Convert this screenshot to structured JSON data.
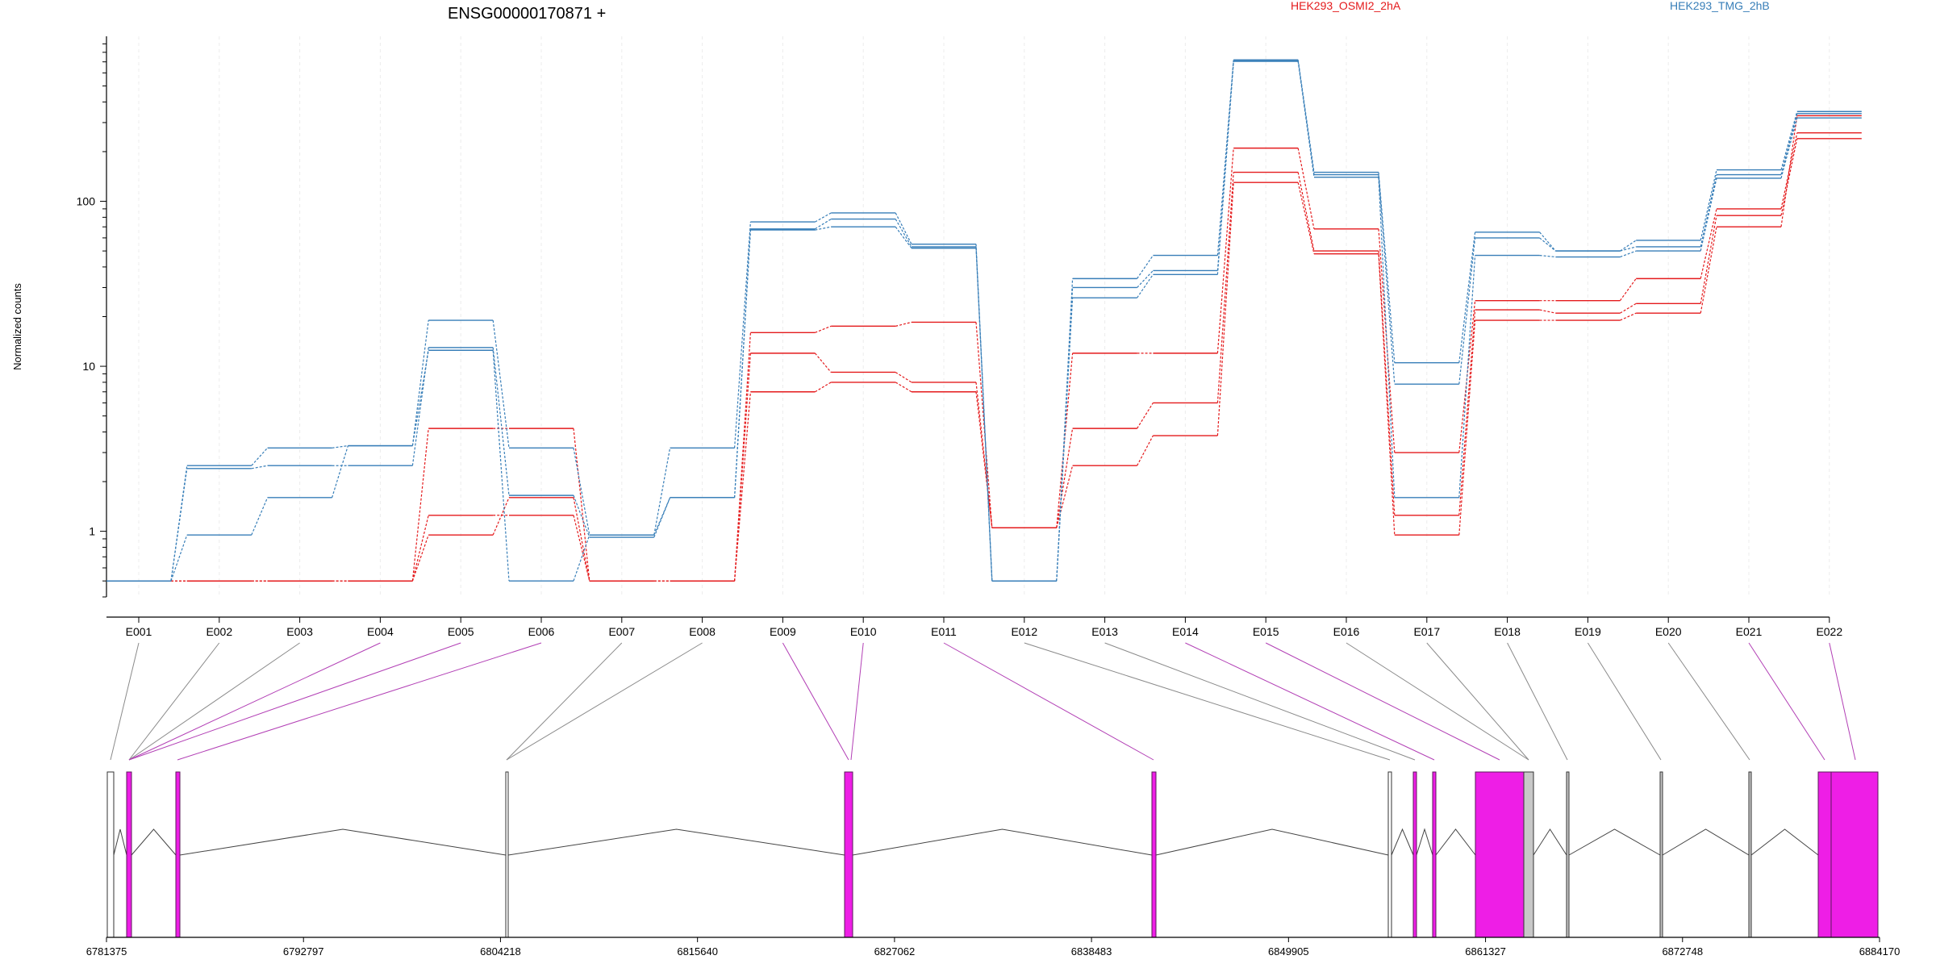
{
  "chart_data": {
    "type": "line",
    "title": "ENSG00000170871 +",
    "ylabel": "Normalized counts",
    "yscale": "log",
    "ylim": [
      0.4,
      1000
    ],
    "y_ticks": [
      1,
      10,
      100
    ],
    "y_tick_labels": [
      "1",
      "10",
      "100"
    ],
    "grid": "vertical, light",
    "legend_position": "top",
    "categories": [
      "E001",
      "E002",
      "E003",
      "E004",
      "E005",
      "E006",
      "E007",
      "E008",
      "E009",
      "E010",
      "E011",
      "E012",
      "E013",
      "E014",
      "E015",
      "E016",
      "E017",
      "E018",
      "E019",
      "E020",
      "E021",
      "E022"
    ],
    "groups": [
      {
        "name": "HEK293_OSMI2_2hA",
        "color": "#e41a1c"
      },
      {
        "name": "HEK293_TMG_2hB",
        "color": "#377eb8"
      }
    ],
    "series": [
      {
        "group": "HEK293_OSMI2_2hA",
        "color": "#e41a1c",
        "values": [
          0.5,
          0.5,
          0.5,
          0.5,
          4.2,
          4.2,
          0.5,
          0.5,
          16,
          17.5,
          18.5,
          1.05,
          12,
          12,
          210,
          68,
          3,
          25,
          25,
          34,
          90,
          260
        ]
      },
      {
        "group": "HEK293_OSMI2_2hA",
        "color": "#e41a1c",
        "values": [
          0.5,
          0.5,
          0.5,
          0.5,
          1.25,
          1.25,
          0.5,
          0.5,
          12,
          9.2,
          8,
          1.05,
          4.2,
          6,
          150,
          50,
          1.25,
          22,
          21,
          24,
          82,
          240
        ]
      },
      {
        "group": "HEK293_OSMI2_2hA",
        "color": "#e41a1c",
        "values": [
          0.5,
          0.5,
          0.5,
          0.5,
          0.95,
          1.6,
          0.5,
          0.5,
          7,
          8,
          7,
          1.05,
          2.5,
          3.8,
          130,
          48,
          0.95,
          19,
          19,
          21,
          70,
          330
        ]
      },
      {
        "group": "HEK293_TMG_2hB",
        "color": "#377eb8",
        "values": [
          0.5,
          2.5,
          3.2,
          3.3,
          19,
          3.2,
          0.95,
          3.2,
          75,
          85,
          55,
          0.5,
          34,
          47,
          720,
          150,
          10.5,
          65,
          50,
          58,
          155,
          350
        ]
      },
      {
        "group": "HEK293_TMG_2hB",
        "color": "#377eb8",
        "values": [
          0.5,
          2.4,
          2.5,
          2.5,
          13,
          1.65,
          0.92,
          1.6,
          68,
          78,
          53,
          0.5,
          30,
          38,
          710,
          145,
          7.8,
          60,
          50,
          53,
          145,
          340
        ]
      },
      {
        "group": "HEK293_TMG_2hB",
        "color": "#377eb8",
        "values": [
          0.5,
          0.95,
          1.6,
          3.3,
          12.5,
          0.5,
          0.95,
          1.6,
          67,
          70,
          52,
          0.5,
          26,
          36,
          705,
          140,
          1.6,
          47,
          46,
          50,
          138,
          320
        ]
      }
    ],
    "gene_model": {
      "x_ticks": [
        6781375,
        6792797,
        6804218,
        6815640,
        6827062,
        6838483,
        6849905,
        6861327,
        6872748,
        6884170
      ],
      "exon_colors": {
        "highlight": "#ee1ee6",
        "normal": "#ffffff",
        "grey": "#c8c8c8"
      }
    }
  }
}
